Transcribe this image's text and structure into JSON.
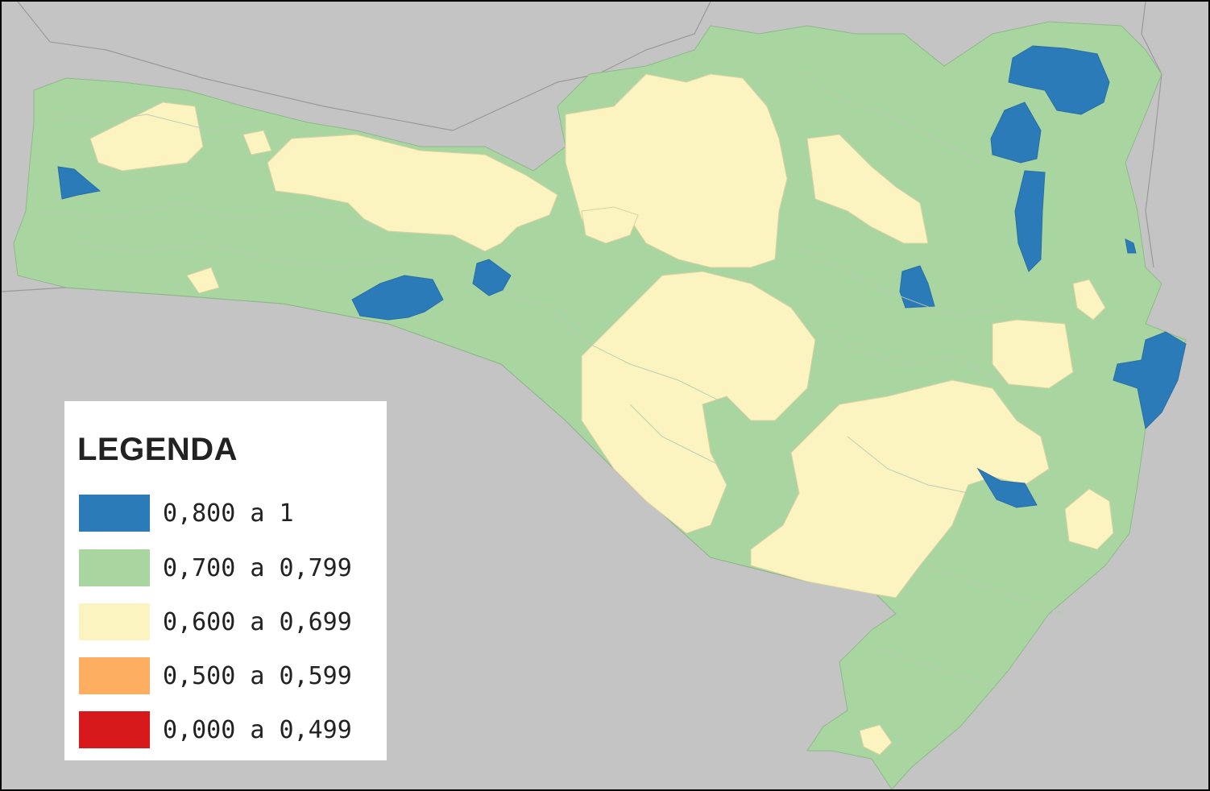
{
  "map": {
    "background_color": "#c4c4c4",
    "region_colors": {
      "blue": "#2b7bb9",
      "green": "#a9d6a0",
      "yellow": "#fbf4c0",
      "orange": "#fdae61",
      "red": "#d7191c"
    }
  },
  "legend": {
    "title": "LEGENDA",
    "items": [
      {
        "label": "0,800 a 1",
        "color": "#2b7bb9"
      },
      {
        "label": "0,700 a 0,799",
        "color": "#a9d6a0"
      },
      {
        "label": "0,600 a 0,699",
        "color": "#fbf4c0"
      },
      {
        "label": "0,500 a 0,599",
        "color": "#fdae61"
      },
      {
        "label": "0,000 a 0,499",
        "color": "#d7191c"
      }
    ]
  }
}
